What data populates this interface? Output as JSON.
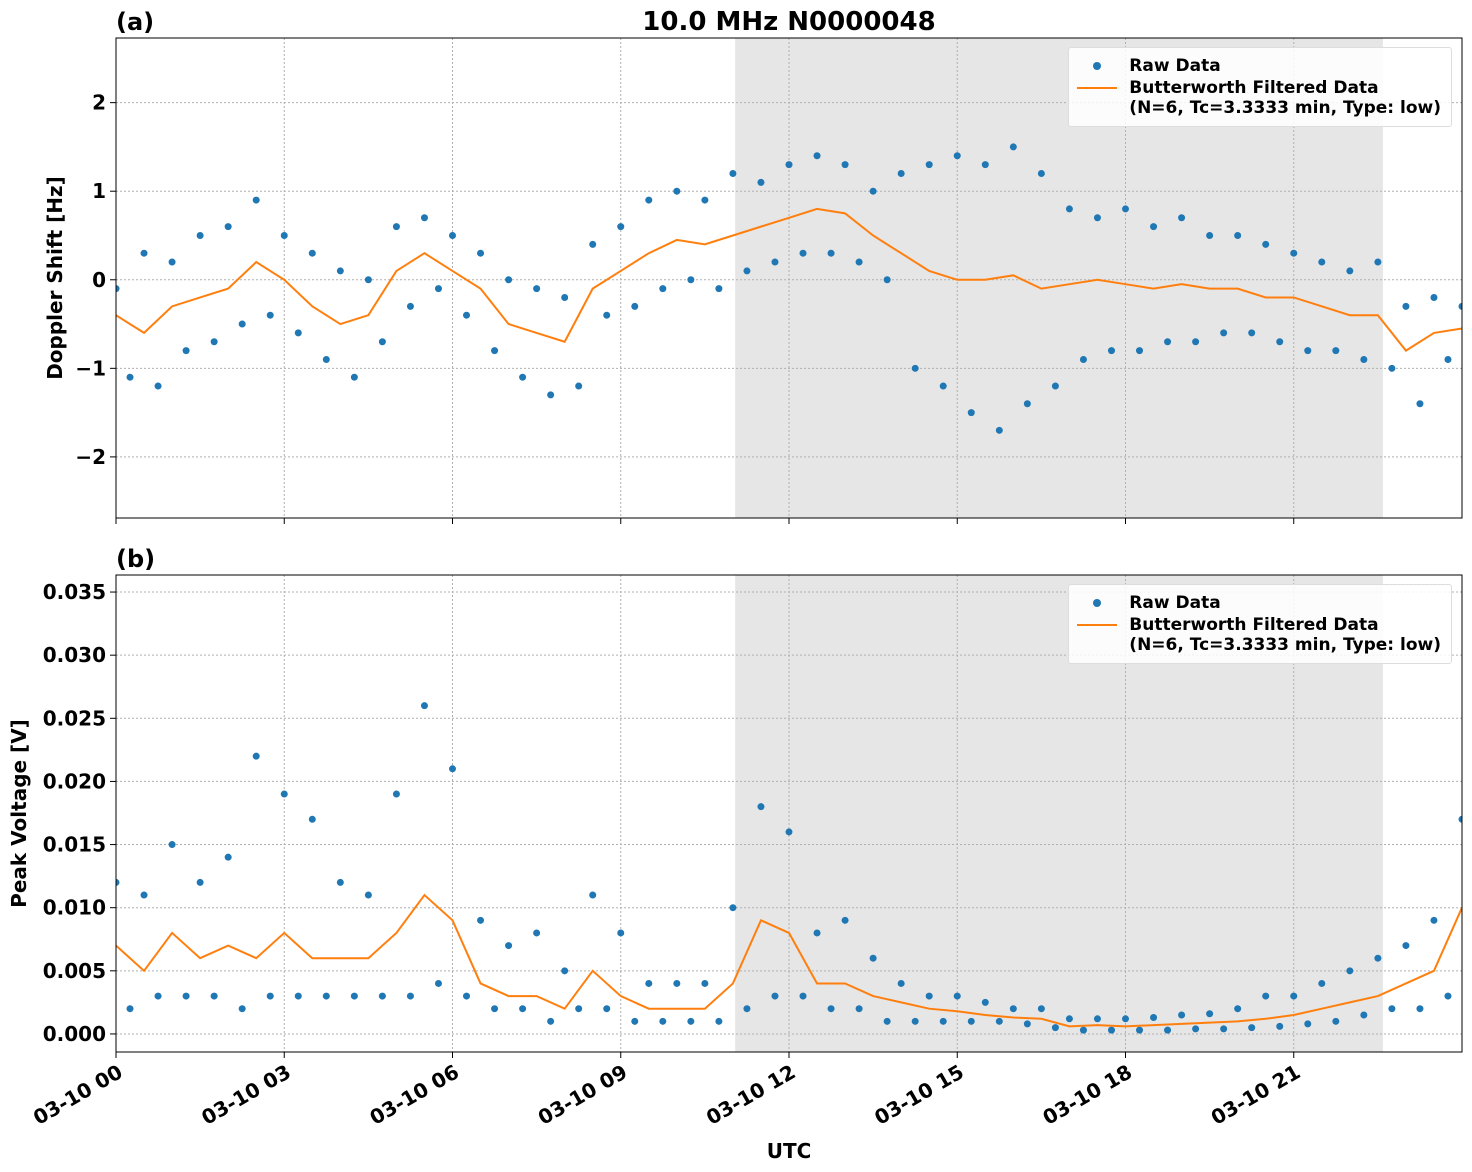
{
  "chart_data": [
    {
      "type": "scatter-line",
      "title": "10.0 MHz N0000048",
      "panel_label": "(a)",
      "ylabel": "Doppler Shift [Hz]",
      "xlim": [
        0,
        24
      ],
      "xticks": [
        0,
        3,
        6,
        9,
        12,
        15,
        18,
        21
      ],
      "ylim": [
        -2.69,
        2.73
      ],
      "yticks": [
        {
          "value": -2,
          "label": "−2"
        },
        {
          "value": -1,
          "label": "−1"
        },
        0,
        1,
        2
      ],
      "grid": true,
      "shaded_span": [
        11.04,
        22.59
      ],
      "legend": "upper right",
      "series": [
        {
          "name": "Raw Data",
          "kind": "scatter",
          "color": "#1f77b4",
          "x": [
            0,
            0.25,
            0.5,
            0.75,
            1,
            1.25,
            1.5,
            1.75,
            2,
            2.25,
            2.5,
            2.75,
            3,
            3.25,
            3.5,
            3.75,
            4,
            4.25,
            4.5,
            4.75,
            5,
            5.25,
            5.5,
            5.75,
            6,
            6.25,
            6.5,
            6.75,
            7,
            7.25,
            7.5,
            7.75,
            8,
            8.25,
            8.5,
            8.75,
            9,
            9.25,
            9.5,
            9.75,
            10,
            10.25,
            10.5,
            10.75,
            11,
            11.25,
            11.5,
            11.75,
            12,
            12.25,
            12.5,
            12.75,
            13,
            13.25,
            13.5,
            13.75,
            14,
            14.25,
            14.5,
            14.75,
            15,
            15.25,
            15.5,
            15.75,
            16,
            16.25,
            16.5,
            16.75,
            17,
            17.25,
            17.5,
            17.75,
            18,
            18.25,
            18.5,
            18.75,
            19,
            19.25,
            19.5,
            19.75,
            20,
            20.25,
            20.5,
            20.75,
            21,
            21.25,
            21.5,
            21.75,
            22,
            22.25,
            22.5,
            22.75,
            23,
            23.25,
            23.5,
            23.75,
            24
          ],
          "values": [
            -0.1,
            -1.1,
            0.3,
            -1.2,
            0.2,
            -0.8,
            0.5,
            -0.7,
            0.6,
            -0.5,
            0.9,
            -0.4,
            0.5,
            -0.6,
            0.3,
            -0.9,
            0.1,
            -1.1,
            0.0,
            -0.7,
            0.6,
            -0.3,
            0.7,
            -0.1,
            0.5,
            -0.4,
            0.3,
            -0.8,
            0.0,
            -1.1,
            -0.1,
            -1.3,
            -0.2,
            -1.2,
            0.4,
            -0.4,
            0.6,
            -0.3,
            0.9,
            -0.1,
            1.0,
            0.0,
            0.9,
            -0.1,
            1.2,
            0.1,
            1.1,
            0.2,
            1.3,
            0.3,
            1.4,
            0.3,
            1.3,
            0.2,
            1.0,
            0.0,
            1.2,
            -1.0,
            1.3,
            -1.2,
            1.4,
            -1.5,
            1.3,
            -1.7,
            1.5,
            -1.4,
            1.2,
            -1.2,
            0.8,
            -0.9,
            0.7,
            -0.8,
            0.8,
            -0.8,
            0.6,
            -0.7,
            0.7,
            -0.7,
            0.5,
            -0.6,
            0.5,
            -0.6,
            0.4,
            -0.7,
            0.3,
            -0.8,
            0.2,
            -0.8,
            0.1,
            -0.9,
            0.2,
            -1.0,
            -0.3,
            -1.4,
            -0.2,
            -0.9,
            -0.3
          ]
        },
        {
          "name": "Butterworth Filtered Data\n(N=6, Tc=3.3333 min, Type: low)",
          "kind": "line",
          "color": "#ff7f0e",
          "x": [
            0,
            0.5,
            1,
            1.5,
            2,
            2.5,
            3,
            3.5,
            4,
            4.5,
            5,
            5.5,
            6,
            6.5,
            7,
            7.5,
            8,
            8.5,
            9,
            9.5,
            10,
            10.5,
            11,
            11.5,
            12,
            12.5,
            13,
            13.5,
            14,
            14.5,
            15,
            15.5,
            16,
            16.5,
            17,
            17.5,
            18,
            18.5,
            19,
            19.5,
            20,
            20.5,
            21,
            21.5,
            22,
            22.5,
            23,
            23.5,
            24
          ],
          "values": [
            -0.4,
            -0.6,
            -0.3,
            -0.2,
            -0.1,
            0.2,
            0.0,
            -0.3,
            -0.5,
            -0.4,
            0.1,
            0.3,
            0.1,
            -0.1,
            -0.5,
            -0.6,
            -0.7,
            -0.1,
            0.1,
            0.3,
            0.45,
            0.4,
            0.5,
            0.6,
            0.7,
            0.8,
            0.75,
            0.5,
            0.3,
            0.1,
            0.0,
            0.0,
            0.05,
            -0.1,
            -0.05,
            0.0,
            -0.05,
            -0.1,
            -0.05,
            -0.1,
            -0.1,
            -0.2,
            -0.2,
            -0.3,
            -0.4,
            -0.4,
            -0.8,
            -0.6,
            -0.55
          ]
        }
      ]
    },
    {
      "type": "scatter-line",
      "panel_label": "(b)",
      "ylabel": "Peak Voltage [V]",
      "xlabel": "UTC",
      "xlim": [
        0,
        24
      ],
      "xticks": [
        {
          "value": 0,
          "label": "03-10 00"
        },
        {
          "value": 3,
          "label": "03-10 03"
        },
        {
          "value": 6,
          "label": "03-10 06"
        },
        {
          "value": 9,
          "label": "03-10 09"
        },
        {
          "value": 12,
          "label": "03-10 12"
        },
        {
          "value": 15,
          "label": "03-10 15"
        },
        {
          "value": 18,
          "label": "03-10 18"
        },
        {
          "value": 21,
          "label": "03-10 21"
        }
      ],
      "ylim": [
        -0.00143,
        0.03635
      ],
      "yticks": [
        {
          "value": 0,
          "label": "0.000"
        },
        {
          "value": 0.005,
          "label": "0.005"
        },
        {
          "value": 0.01,
          "label": "0.010"
        },
        {
          "value": 0.015,
          "label": "0.015"
        },
        {
          "value": 0.02,
          "label": "0.020"
        },
        {
          "value": 0.025,
          "label": "0.025"
        },
        {
          "value": 0.03,
          "label": "0.030"
        },
        {
          "value": 0.035,
          "label": "0.035"
        }
      ],
      "grid": true,
      "shaded_span": [
        11.04,
        22.59
      ],
      "legend": "upper right",
      "series": [
        {
          "name": "Raw Data",
          "kind": "scatter",
          "color": "#1f77b4",
          "x": [
            0,
            0.25,
            0.5,
            0.75,
            1,
            1.25,
            1.5,
            1.75,
            2,
            2.25,
            2.5,
            2.75,
            3,
            3.25,
            3.5,
            3.75,
            4,
            4.25,
            4.5,
            4.75,
            5,
            5.25,
            5.5,
            5.75,
            6,
            6.25,
            6.5,
            6.75,
            7,
            7.25,
            7.5,
            7.75,
            8,
            8.25,
            8.5,
            8.75,
            9,
            9.25,
            9.5,
            9.75,
            10,
            10.25,
            10.5,
            10.75,
            11,
            11.25,
            11.5,
            11.75,
            12,
            12.25,
            12.5,
            12.75,
            13,
            13.25,
            13.5,
            13.75,
            14,
            14.25,
            14.5,
            14.75,
            15,
            15.25,
            15.5,
            15.75,
            16,
            16.25,
            16.5,
            16.75,
            17,
            17.25,
            17.5,
            17.75,
            18,
            18.25,
            18.5,
            18.75,
            19,
            19.25,
            19.5,
            19.75,
            20,
            20.25,
            20.5,
            20.75,
            21,
            21.25,
            21.5,
            21.75,
            22,
            22.25,
            22.5,
            22.75,
            23,
            23.25,
            23.5,
            23.75,
            24
          ],
          "values": [
            0.012,
            0.002,
            0.011,
            0.003,
            0.015,
            0.003,
            0.012,
            0.003,
            0.014,
            0.002,
            0.022,
            0.003,
            0.019,
            0.003,
            0.017,
            0.003,
            0.012,
            0.003,
            0.011,
            0.003,
            0.019,
            0.003,
            0.026,
            0.004,
            0.021,
            0.003,
            0.009,
            0.002,
            0.007,
            0.002,
            0.008,
            0.001,
            0.005,
            0.002,
            0.011,
            0.002,
            0.008,
            0.001,
            0.004,
            0.001,
            0.004,
            0.001,
            0.004,
            0.001,
            0.01,
            0.002,
            0.018,
            0.003,
            0.016,
            0.003,
            0.008,
            0.002,
            0.009,
            0.002,
            0.006,
            0.001,
            0.004,
            0.001,
            0.003,
            0.001,
            0.003,
            0.001,
            0.0025,
            0.001,
            0.002,
            0.0008,
            0.002,
            0.0005,
            0.0012,
            0.0003,
            0.0012,
            0.0003,
            0.0012,
            0.0003,
            0.0013,
            0.0003,
            0.0015,
            0.0004,
            0.0016,
            0.0004,
            0.002,
            0.0005,
            0.003,
            0.0006,
            0.003,
            0.0008,
            0.004,
            0.001,
            0.005,
            0.0015,
            0.006,
            0.002,
            0.007,
            0.002,
            0.009,
            0.003,
            0.017
          ]
        },
        {
          "name": "Butterworth Filtered Data\n(N=6, Tc=3.3333 min, Type: low)",
          "kind": "line",
          "color": "#ff7f0e",
          "x": [
            0,
            0.5,
            1,
            1.5,
            2,
            2.5,
            3,
            3.5,
            4,
            4.5,
            5,
            5.5,
            6,
            6.5,
            7,
            7.5,
            8,
            8.5,
            9,
            9.5,
            10,
            10.5,
            11,
            11.5,
            12,
            12.5,
            13,
            13.5,
            14,
            14.5,
            15,
            15.5,
            16,
            16.5,
            17,
            17.5,
            18,
            18.5,
            19,
            19.5,
            20,
            20.5,
            21,
            21.5,
            22,
            22.5,
            23,
            23.5,
            24
          ],
          "values": [
            0.007,
            0.005,
            0.008,
            0.006,
            0.007,
            0.006,
            0.008,
            0.006,
            0.006,
            0.006,
            0.008,
            0.011,
            0.009,
            0.004,
            0.003,
            0.003,
            0.002,
            0.005,
            0.003,
            0.002,
            0.002,
            0.002,
            0.004,
            0.009,
            0.008,
            0.004,
            0.004,
            0.003,
            0.0025,
            0.002,
            0.0018,
            0.0015,
            0.0013,
            0.0012,
            0.0006,
            0.0007,
            0.0006,
            0.0007,
            0.0008,
            0.0009,
            0.001,
            0.0012,
            0.0015,
            0.002,
            0.0025,
            0.003,
            0.004,
            0.005,
            0.01
          ]
        }
      ]
    }
  ]
}
